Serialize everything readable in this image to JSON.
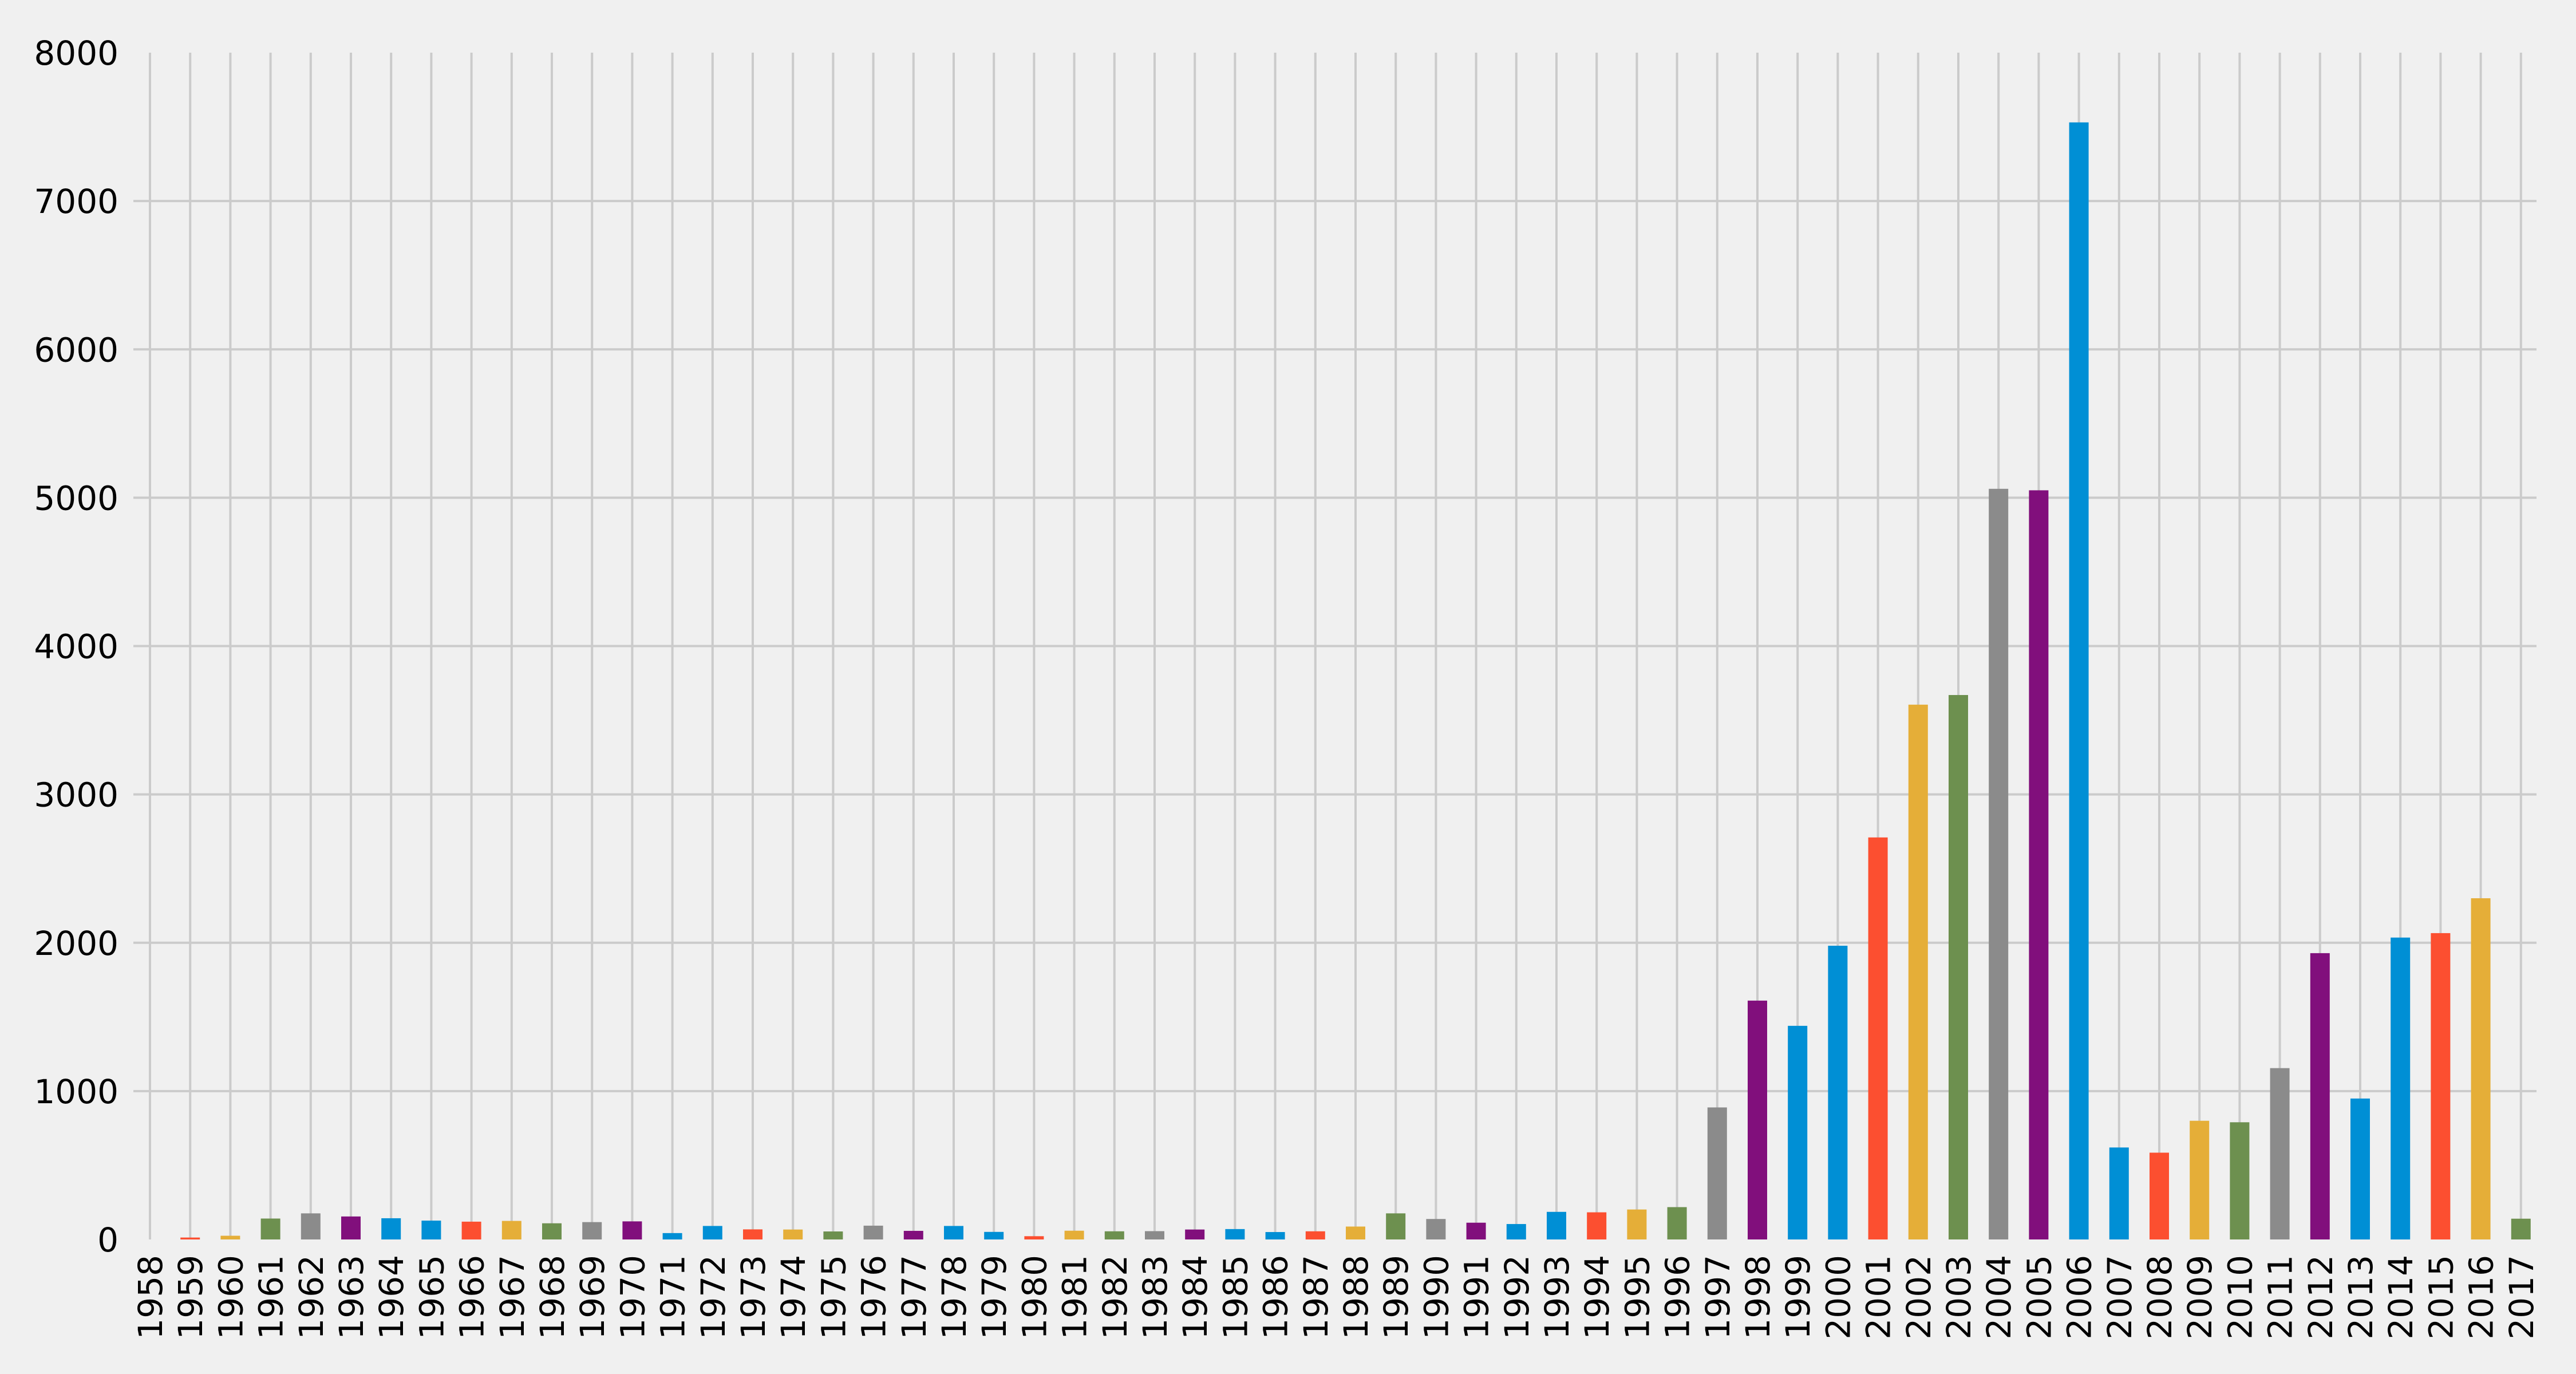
{
  "chart_data": {
    "type": "bar",
    "title": "",
    "xlabel": "",
    "ylabel": "",
    "ylim": [
      0,
      8000
    ],
    "yticks": [
      0,
      1000,
      2000,
      3000,
      4000,
      5000,
      6000,
      7000,
      8000
    ],
    "grid": true,
    "legend": null,
    "categories": [
      "1958",
      "1959",
      "1960",
      "1961",
      "1962",
      "1963",
      "1964",
      "1965",
      "1966",
      "1967",
      "1968",
      "1969",
      "1970",
      "1971",
      "1972",
      "1973",
      "1974",
      "1975",
      "1976",
      "1977",
      "1978",
      "1979",
      "1980",
      "1981",
      "1982",
      "1983",
      "1984",
      "1985",
      "1986",
      "1987",
      "1988",
      "1989",
      "1990",
      "1991",
      "1992",
      "1993",
      "1994",
      "1995",
      "1996",
      "1997",
      "1998",
      "1999",
      "2000",
      "2001",
      "2002",
      "2003",
      "2004",
      "2005",
      "2006",
      "2007",
      "2008",
      "2009",
      "2010",
      "2011",
      "2012",
      "2013",
      "2014",
      "2015",
      "2016",
      "2017"
    ],
    "values": [
      0,
      13,
      25,
      141,
      176,
      155,
      143,
      127,
      120,
      125,
      109,
      117,
      122,
      43,
      91,
      68,
      67,
      54,
      93,
      58,
      91,
      51,
      22,
      59,
      55,
      56,
      67,
      70,
      50,
      55,
      87,
      176,
      138,
      113,
      104,
      186,
      183,
      202,
      218,
      890,
      1610,
      1440,
      1980,
      2710,
      3605,
      3670,
      5060,
      5050,
      7530,
      620,
      585,
      800,
      790,
      1155,
      1930,
      950,
      2035,
      2065,
      2300,
      140
    ],
    "color_cycle": [
      "#008fd5",
      "#fc4f30",
      "#e5ae38",
      "#6d904f",
      "#8b8b8b",
      "#810f7c",
      "#008fd5"
    ]
  },
  "style": {
    "background": "#f0f0f0",
    "grid_color": "#cbcbcb"
  }
}
